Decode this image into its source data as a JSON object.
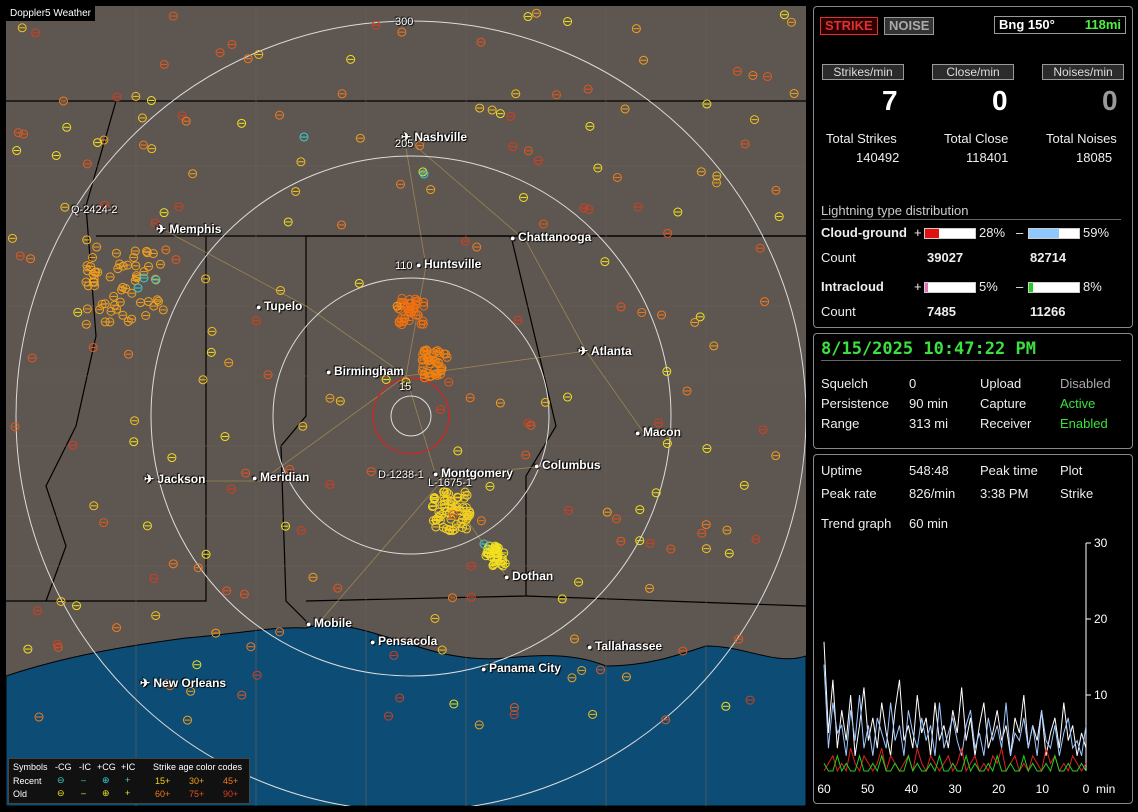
{
  "map": {
    "tag": "Doppler5 Weather",
    "cities": [
      {
        "name": "Nashville",
        "icon": "airport"
      },
      {
        "name": "Memphis",
        "icon": "airport"
      },
      {
        "name": "Chattanooga",
        "icon": "dot"
      },
      {
        "name": "Huntsville",
        "icon": "dot"
      },
      {
        "name": "Tupelo",
        "icon": "dot"
      },
      {
        "name": "Atlanta",
        "icon": "airport"
      },
      {
        "name": "Birmingham",
        "icon": "dot"
      },
      {
        "name": "Macon",
        "icon": "dot"
      },
      {
        "name": "Jackson",
        "icon": "airport"
      },
      {
        "name": "Meridian",
        "icon": "dot"
      },
      {
        "name": "Montgomery",
        "icon": "dot"
      },
      {
        "name": "Columbus",
        "icon": "dot"
      },
      {
        "name": "Dothan",
        "icon": "dot"
      },
      {
        "name": "Mobile",
        "icon": "dot"
      },
      {
        "name": "Pensacola",
        "icon": "dot"
      },
      {
        "name": "Tallahassee",
        "icon": "dot"
      },
      {
        "name": "Panama City",
        "icon": "dot"
      },
      {
        "name": "New Orleans",
        "icon": "airport"
      }
    ],
    "ring_labels": [
      "300",
      "205",
      "110",
      "15"
    ],
    "storm_labels": [
      "Q-2424-2",
      "D-1238-1",
      "L-1675-1"
    ],
    "legend": {
      "symbols_title": "Symbols",
      "cols": [
        "-CG",
        "-IC",
        "+CG",
        "+IC"
      ],
      "age_title": "Strike age color codes",
      "recent_label": "Recent",
      "old_label": "Old",
      "recent_ages": [
        "15+",
        "30+",
        "45+"
      ],
      "old_ages": [
        "60+",
        "75+",
        "90+"
      ]
    }
  },
  "status": {
    "strike_btn": "STRIKE",
    "noise_btn": "NOISE",
    "bearing": "Bng 150°",
    "range": "118mi",
    "strikes_per_min_label": "Strikes/min",
    "close_per_min_label": "Close/min",
    "noises_per_min_label": "Noises/min",
    "strikes_per_min": "7",
    "close_per_min": "0",
    "noises_per_min": "0",
    "total_strikes_label": "Total Strikes",
    "total_close_label": "Total Close",
    "total_noises_label": "Total Noises",
    "total_strikes": "140492",
    "total_close": "118401",
    "total_noises": "18085",
    "dist_title": "Lightning type distribution",
    "cg_label": "Cloud-ground",
    "ic_label": "Intracloud",
    "count_label": "Count",
    "plus": "+",
    "minus": "–",
    "cg_pos_pct": "28%",
    "cg_neg_pct": "59%",
    "cg_pos_count": "39027",
    "cg_neg_count": "82714",
    "ic_pos_pct": "5%",
    "ic_neg_pct": "8%",
    "ic_pos_count": "7485",
    "ic_neg_count": "11266",
    "cg_pos_frac": 0.28,
    "cg_neg_frac": 0.59,
    "ic_pos_frac": 0.05,
    "ic_neg_frac": 0.08
  },
  "settings": {
    "datetime": "8/15/2025 10:47:22 PM",
    "squelch_label": "Squelch",
    "squelch": "0",
    "persistence_label": "Persistence",
    "persistence": "90 min",
    "range_label": "Range",
    "range": "313 mi",
    "upload_label": "Upload",
    "upload": "Disabled",
    "capture_label": "Capture",
    "capture": "Active",
    "receiver_label": "Receiver",
    "receiver": "Enabled"
  },
  "trend": {
    "uptime_label": "Uptime",
    "uptime": "548:48",
    "peak_time_label": "Peak time",
    "plot_label": "Plot",
    "peak_rate_label": "Peak rate",
    "peak_rate": "826/min",
    "peak_time": "3:38 PM",
    "plot": "Strike",
    "trend_label": "Trend graph",
    "trend_window": "60 min"
  },
  "chart_data": {
    "type": "line",
    "xlabel": "min",
    "x_ticks": [
      "60",
      "50",
      "40",
      "30",
      "20",
      "10",
      "0"
    ],
    "y_ticks": [
      "30",
      "20",
      "10"
    ],
    "ylim": [
      0,
      30
    ],
    "xlim": [
      60,
      0
    ],
    "series": [
      {
        "color": "#ffffff",
        "values": [
          17,
          5,
          12,
          3,
          8,
          4,
          10,
          2,
          6,
          11,
          4,
          7,
          3,
          9,
          5,
          2,
          8,
          12,
          4,
          6,
          3,
          10,
          5,
          7,
          2,
          9,
          4,
          6,
          3,
          8,
          5,
          11,
          4,
          7,
          2,
          6,
          9,
          3,
          5,
          8,
          4,
          6,
          2,
          7,
          5,
          10,
          3,
          6,
          4,
          8,
          2,
          5,
          7,
          3,
          9,
          4,
          6,
          2,
          5,
          3
        ]
      },
      {
        "color": "#9fc8ff",
        "values": [
          14,
          3,
          9,
          5,
          6,
          2,
          8,
          4,
          10,
          3,
          6,
          2,
          7,
          5,
          3,
          9,
          4,
          6,
          2,
          8,
          5,
          3,
          7,
          4,
          6,
          2,
          9,
          3,
          5,
          7,
          4,
          2,
          6,
          8,
          3,
          5,
          2,
          7,
          4,
          6,
          3,
          9,
          2,
          5,
          4,
          7,
          3,
          6,
          2,
          8,
          4,
          3,
          6,
          2,
          5,
          7,
          3,
          4,
          2,
          6
        ]
      },
      {
        "color": "#e02020",
        "values": [
          0,
          1,
          2,
          0,
          1,
          0,
          3,
          1,
          0,
          2,
          1,
          0,
          1,
          3,
          0,
          2,
          1,
          0,
          1,
          2,
          0,
          3,
          1,
          0,
          2,
          1,
          0,
          1,
          2,
          0,
          1,
          3,
          0,
          1,
          2,
          0,
          1,
          0,
          2,
          1,
          3,
          0,
          1,
          2,
          0,
          1,
          0,
          2,
          1,
          0,
          3,
          1,
          2,
          0,
          1,
          0,
          2,
          1,
          0,
          1
        ]
      },
      {
        "color": "#20d020",
        "values": [
          1,
          0,
          0,
          2,
          0,
          1,
          0,
          0,
          2,
          0,
          0,
          1,
          0,
          2,
          0,
          0,
          1,
          0,
          0,
          2,
          0,
          1,
          0,
          0,
          1,
          0,
          2,
          0,
          0,
          1,
          0,
          0,
          2,
          0,
          1,
          0,
          0,
          1,
          0,
          2,
          0,
          0,
          1,
          0,
          0,
          2,
          0,
          1,
          0,
          0,
          1,
          0,
          2,
          0,
          0,
          1,
          0,
          0,
          1,
          0
        ]
      }
    ]
  }
}
